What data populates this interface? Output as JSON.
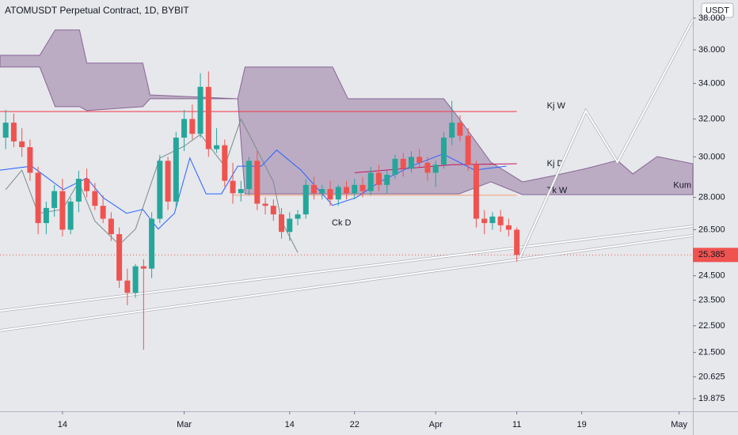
{
  "chart_data": {
    "type": "candlestick",
    "title": "ATOMUSDT Perpetual Contract, 1D, BYBIT",
    "y_unit": "USDT",
    "log_scale": true,
    "up_color": "#26a69a",
    "down_color": "#ef5350",
    "xlim": [
      -7.7,
      77.7
    ],
    "ylim": [
      19.45,
      39.19
    ],
    "xticks": [
      {
        "value": 0,
        "label": "14"
      },
      {
        "value": 15,
        "label": "Mar"
      },
      {
        "value": 28,
        "label": "14"
      },
      {
        "value": 36,
        "label": "22"
      },
      {
        "value": 46,
        "label": "Apr"
      },
      {
        "value": 56,
        "label": "11"
      },
      {
        "value": 64,
        "label": "19"
      },
      {
        "value": 76,
        "label": "May"
      }
    ],
    "yticks": [
      {
        "value": 38,
        "label": "38.000"
      },
      {
        "value": 36,
        "label": "36.000"
      },
      {
        "value": 34,
        "label": "34.000"
      },
      {
        "value": 32,
        "label": "32.000"
      },
      {
        "value": 30,
        "label": "30.000"
      },
      {
        "value": 28,
        "label": "28.000"
      },
      {
        "value": 26.5,
        "label": "26.500"
      },
      {
        "value": 24.5,
        "label": "24.500"
      },
      {
        "value": 23.5,
        "label": "23.500"
      },
      {
        "value": 22.5,
        "label": "22.500"
      },
      {
        "value": 21.5,
        "label": "21.500"
      },
      20.625,
      19.875
    ],
    "last_price": 25.385,
    "candles": {
      "x": [
        -7,
        -6,
        -5,
        -4,
        -3,
        -2,
        -1,
        0,
        1,
        2,
        3,
        4,
        5,
        6,
        7,
        8,
        9,
        10,
        11,
        12,
        13,
        14,
        15,
        16,
        17,
        18,
        19,
        20,
        21,
        22,
        23,
        24,
        25,
        26,
        27,
        28,
        29,
        30,
        31,
        32,
        33,
        34,
        35,
        36,
        37,
        38,
        39,
        40,
        41,
        42,
        43,
        44,
        45,
        46,
        47,
        48,
        49,
        50,
        51,
        52,
        53,
        54,
        55,
        56
      ],
      "open": [
        31.0,
        31.8,
        30.8,
        30.5,
        29.2,
        26.8,
        27.5,
        28.3,
        26.5,
        27.8,
        28.9,
        28.3,
        27.6,
        27.0,
        26.3,
        24.3,
        23.8,
        24.9,
        24.8,
        27.0,
        29.8,
        27.8,
        31.0,
        32.0,
        31.2,
        33.8,
        30.4,
        30.6,
        28.8,
        28.2,
        28.4,
        29.8,
        27.7,
        27.6,
        27.2,
        26.4,
        27.0,
        27.2,
        28.6,
        28.2,
        28.4,
        27.9,
        28.5,
        28.2,
        28.6,
        28.3,
        29.2,
        28.6,
        29.1,
        29.9,
        29.4,
        30.0,
        29.7,
        29.2,
        29.6,
        31.0,
        31.8,
        31.1,
        29.6,
        27.0,
        26.8,
        27.1,
        26.7,
        26.5
      ],
      "high": [
        32.5,
        32.3,
        31.5,
        30.9,
        29.5,
        27.8,
        28.6,
        28.9,
        28.0,
        29.3,
        29.4,
        28.7,
        28.1,
        27.3,
        26.6,
        24.8,
        25.0,
        25.2,
        27.3,
        30.1,
        30.0,
        31.3,
        32.5,
        32.8,
        34.6,
        34.7,
        31.5,
        30.9,
        29.7,
        28.8,
        30.0,
        30.3,
        28.0,
        27.9,
        27.5,
        27.3,
        27.4,
        28.9,
        29.0,
        28.6,
        28.8,
        28.6,
        28.8,
        28.9,
        29.0,
        29.5,
        29.6,
        29.3,
        30.1,
        30.2,
        30.3,
        30.4,
        30.0,
        29.8,
        31.3,
        33.0,
        32.2,
        31.5,
        29.8,
        27.4,
        27.3,
        27.4,
        27.0,
        26.6
      ],
      "low": [
        30.4,
        30.5,
        30.0,
        28.8,
        26.3,
        26.3,
        27.1,
        26.2,
        26.3,
        27.3,
        28.0,
        27.4,
        26.8,
        26.0,
        24.0,
        23.3,
        23.6,
        21.6,
        24.4,
        26.8,
        27.4,
        27.5,
        30.3,
        30.9,
        31.0,
        30.0,
        30.2,
        28.5,
        27.7,
        27.8,
        28.1,
        27.4,
        27.2,
        26.9,
        26.1,
        26.0,
        26.7,
        27.0,
        27.9,
        27.9,
        27.6,
        27.6,
        27.9,
        27.9,
        28.0,
        28.1,
        28.3,
        28.2,
        28.9,
        29.0,
        29.2,
        29.5,
        28.8,
        28.5,
        29.4,
        30.6,
        30.8,
        29.3,
        26.6,
        26.3,
        26.5,
        26.4,
        26.2,
        25.1
      ],
      "close": [
        31.8,
        30.8,
        30.5,
        29.2,
        26.8,
        27.5,
        28.3,
        26.5,
        27.8,
        28.9,
        28.3,
        27.6,
        27.0,
        26.3,
        24.3,
        23.8,
        24.9,
        24.8,
        27.0,
        29.8,
        27.8,
        31.0,
        32.0,
        31.2,
        33.8,
        30.4,
        30.6,
        28.8,
        28.2,
        28.4,
        29.8,
        27.7,
        27.6,
        27.2,
        26.4,
        27.0,
        27.2,
        28.6,
        28.2,
        28.4,
        27.9,
        28.5,
        28.2,
        28.6,
        28.3,
        29.2,
        28.6,
        29.1,
        29.9,
        29.4,
        30.0,
        29.7,
        29.2,
        29.6,
        31.0,
        31.8,
        31.1,
        29.6,
        27.0,
        26.8,
        27.1,
        26.7,
        26.5,
        25.385
      ]
    },
    "cloud": {
      "name": "Kum",
      "color": "#6b3d7a",
      "x": [
        -7.7,
        -2.8,
        -0.9,
        2.1,
        3.0,
        9.9,
        10.8,
        21.6,
        22.5,
        33.3,
        35.2,
        47.0,
        48.9,
        52.8,
        56.7,
        60.6,
        64.5,
        68.4,
        70.3,
        73.3,
        77.7
      ],
      "upper": [
        35.67,
        35.67,
        37.24,
        37.24,
        35.2,
        35.2,
        33.34,
        33.12,
        34.96,
        34.96,
        33.12,
        33.12,
        32.02,
        29.73,
        28.75,
        29.06,
        29.41,
        29.82,
        29.14,
        30.02,
        29.65
      ],
      "lower": [
        34.96,
        34.96,
        32.68,
        32.68,
        32.46,
        32.68,
        33.12,
        33.12,
        28.17,
        28.17,
        28.17,
        28.17,
        28.17,
        28.75,
        28.13,
        28.13,
        28.13,
        28.13,
        28.13,
        28.13,
        28.13
      ]
    },
    "lines": [
      {
        "name": "Kj W",
        "color": "#f23645",
        "x": [
          -7.7,
          56
        ],
        "values": [
          32.41,
          32.41
        ]
      },
      {
        "name": "Kj D",
        "color": "#c2185b",
        "x": [
          36,
          48,
          56
        ],
        "values": [
          29.2,
          29.6,
          29.65
        ]
      },
      {
        "name": "Tk W",
        "color": "#f7a072",
        "x": [
          21,
          56
        ],
        "values": [
          28.1,
          28.1
        ]
      },
      {
        "name": "Ck D",
        "color": "#7b8a8b",
        "x": [
          -7,
          -5,
          -3,
          0,
          2,
          4,
          7,
          9,
          12,
          15,
          17,
          20,
          22,
          24,
          26,
          27,
          29
        ],
        "values": [
          28.37,
          29.33,
          27.25,
          27.43,
          28.75,
          26.89,
          25.83,
          26.53,
          29.94,
          30.55,
          31.17,
          29.53,
          32.0,
          30.35,
          28.75,
          26.89,
          25.49
        ]
      },
      {
        "color": "#2962ff",
        "x": [
          -7.7,
          -3.8,
          0.1,
          3.0,
          5.0,
          7.9,
          9.9,
          11.8,
          13.8,
          15.7,
          17.7,
          19.6,
          21.6,
          24.5,
          26.4,
          29.4,
          33.3,
          36.2,
          39.1,
          43.0,
          46.9,
          50.8,
          54.7
        ],
        "values": [
          29.33,
          29.53,
          28.37,
          28.94,
          27.99,
          27.25,
          27.43,
          26.53,
          27.25,
          29.94,
          28.17,
          28.17,
          29.53,
          29.53,
          30.35,
          29.33,
          27.62,
          27.99,
          28.75,
          29.53,
          30.15,
          29.33,
          29.53
        ]
      },
      {
        "color": "#ffffff",
        "x": [
          -7.7,
          77.7
        ],
        "values": [
          23.08,
          26.66
        ]
      },
      {
        "color": "#ffffff",
        "x": [
          -7.7,
          77.7
        ],
        "values": [
          22.32,
          26.24
        ]
      },
      {
        "color": "#ffffff",
        "x": [
          56.4,
          64.5,
          68.4,
          77.7
        ],
        "values": [
          25.29,
          32.45,
          29.73,
          37.9
        ]
      }
    ]
  }
}
